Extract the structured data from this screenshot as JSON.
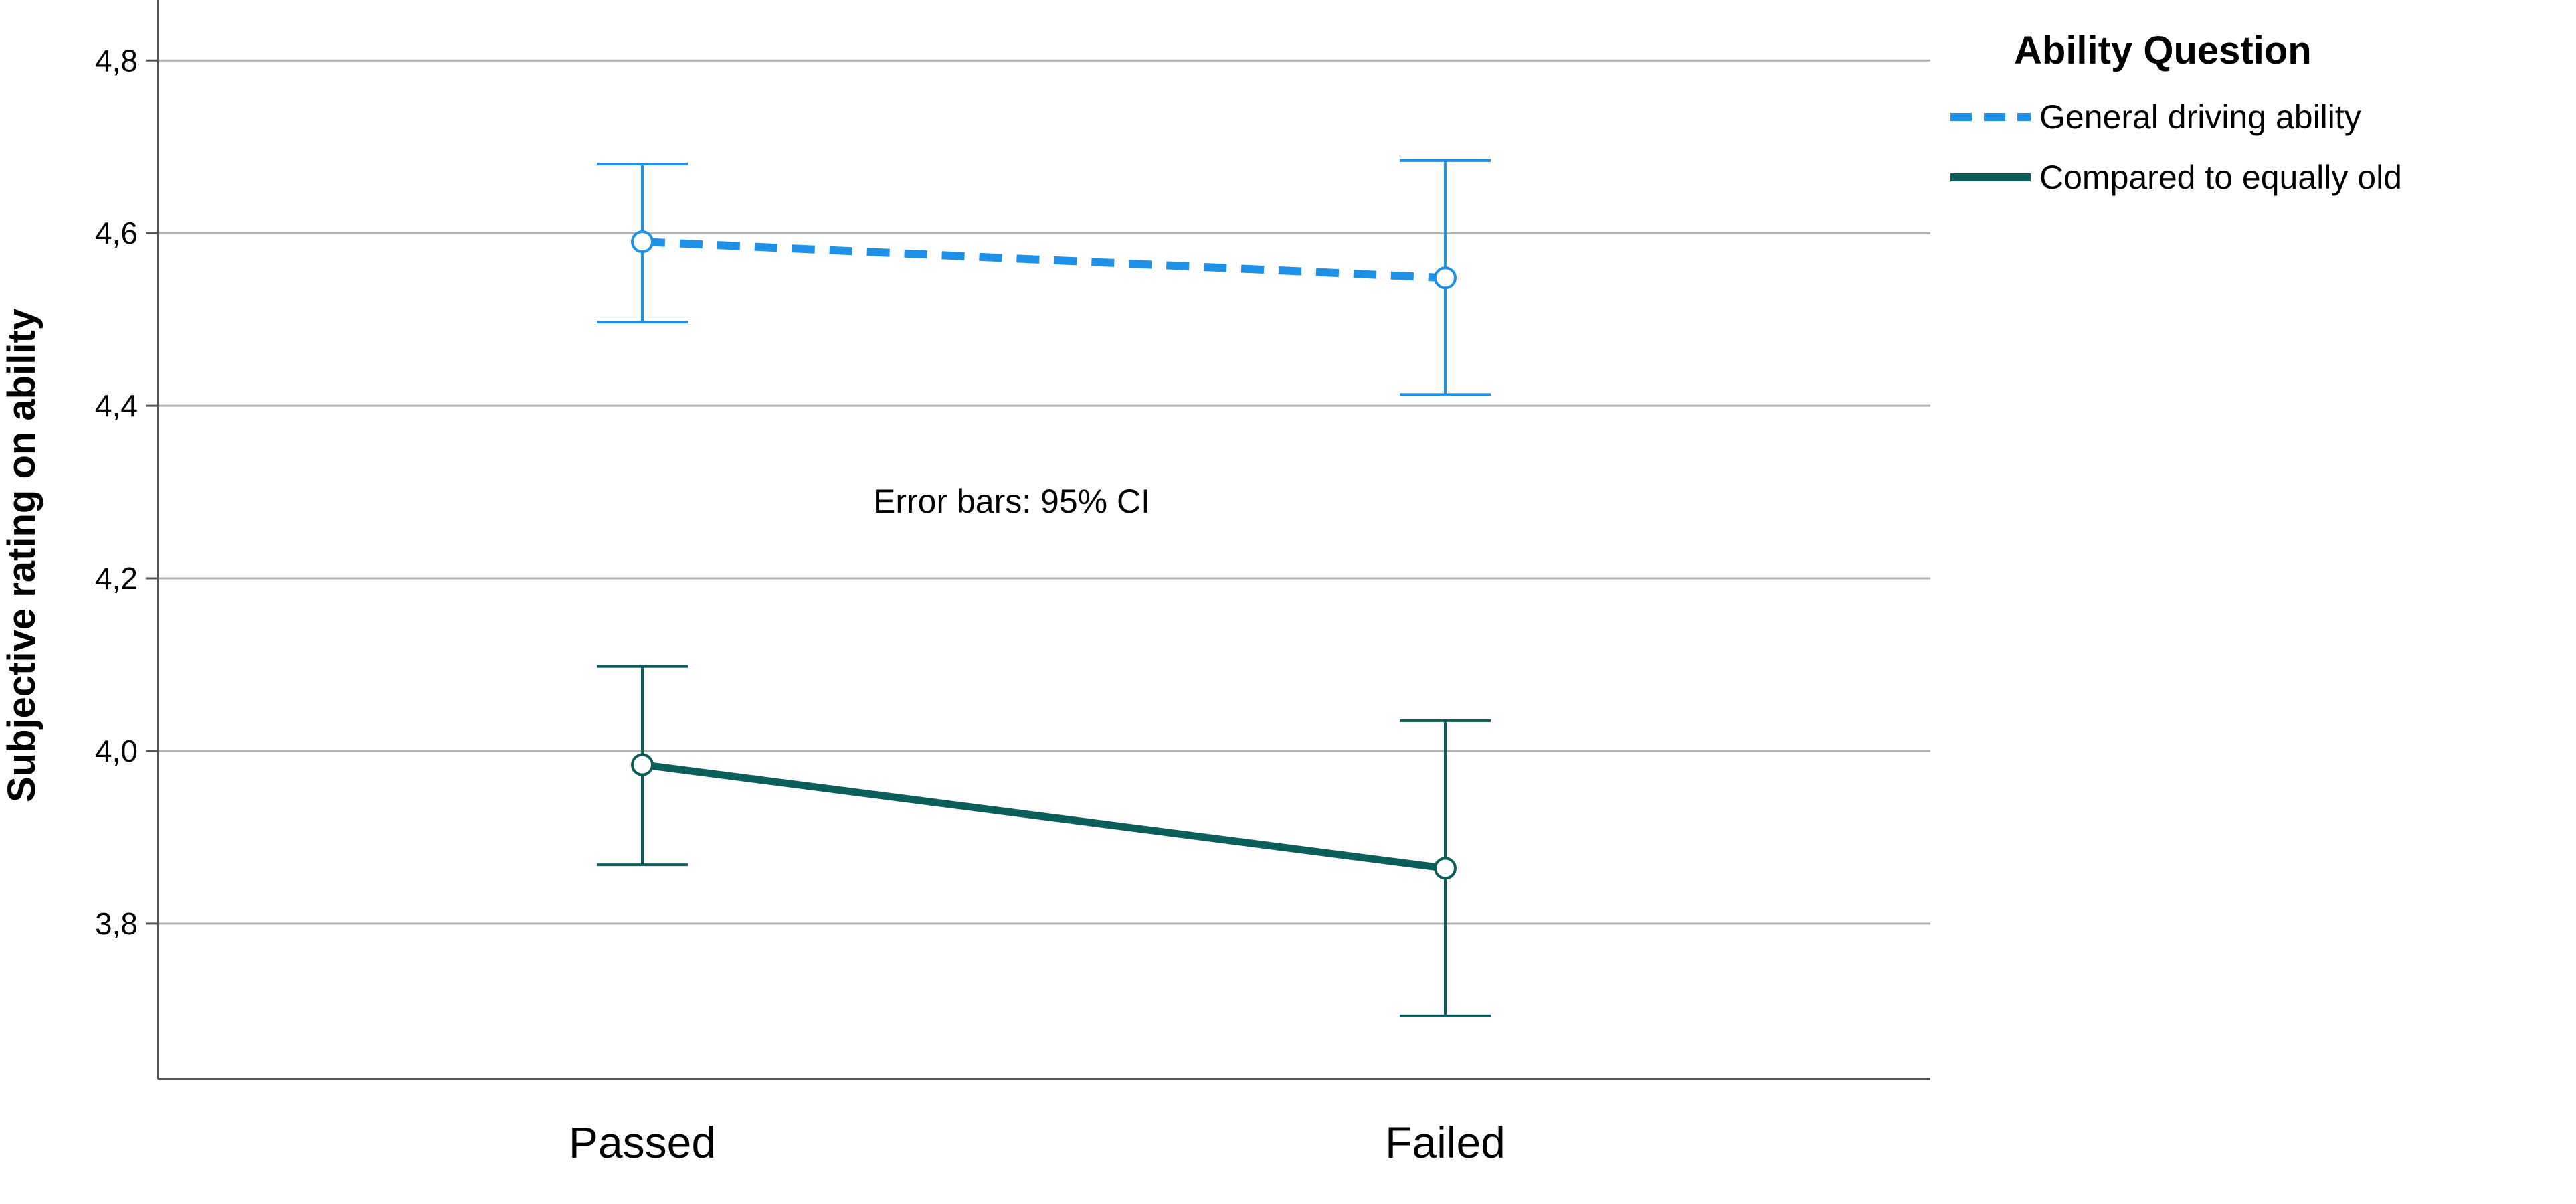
{
  "chart_data": {
    "type": "line",
    "title": "",
    "xlabel": "",
    "ylabel": "Subjective rating on ability",
    "categories": [
      "Passed",
      "Failed"
    ],
    "ylim": [
      3.62,
      4.87
    ],
    "yticks": [
      3.8,
      4.0,
      4.2,
      4.4,
      4.6,
      4.8
    ],
    "ytick_labels": [
      "3,8",
      "4,0",
      "4,2",
      "4,4",
      "4,6",
      "4,8"
    ],
    "grid": "horizontal",
    "legend": {
      "title": "Ability Question",
      "position": "top-right"
    },
    "annotation": "Error bars: 95% CI",
    "series": [
      {
        "name": "General driving ability",
        "values": [
          4.59,
          4.548
        ],
        "ci_lower": [
          4.497,
          4.413
        ],
        "ci_upper": [
          4.68,
          4.684
        ],
        "color": "#1e90e6",
        "line_style": "dashed"
      },
      {
        "name": "Compared to equally old",
        "values": [
          3.984,
          3.864
        ],
        "ci_lower": [
          3.868,
          3.693
        ],
        "ci_upper": [
          4.098,
          4.035
        ],
        "color": "#0b5e5a",
        "line_style": "solid"
      }
    ]
  }
}
